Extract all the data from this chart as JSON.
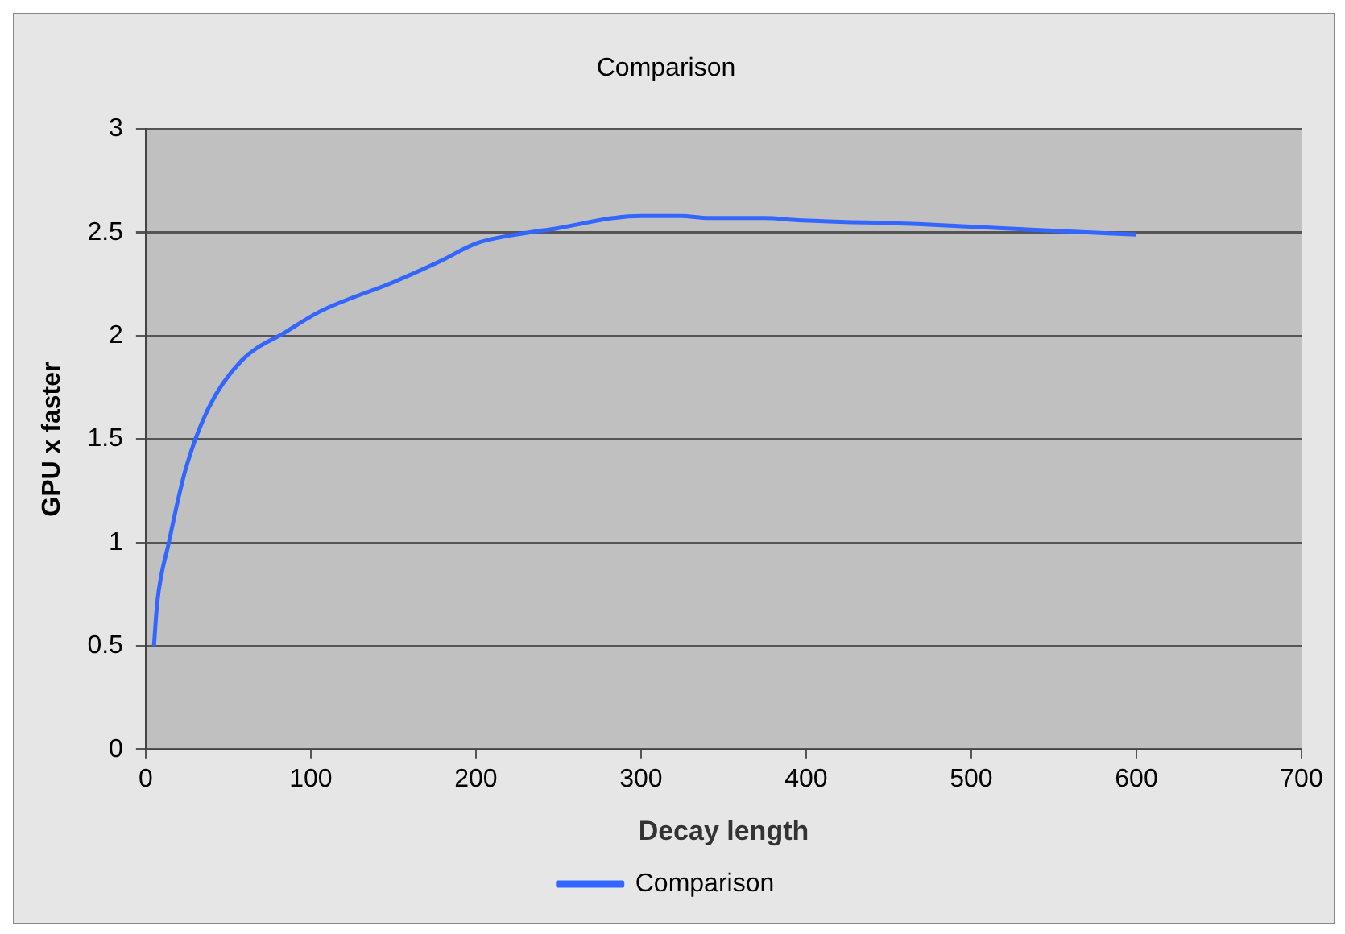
{
  "chart_data": {
    "type": "line",
    "title": "Comparison",
    "xlabel": "Decay length",
    "ylabel": "GPU x faster",
    "xlim": [
      0,
      700
    ],
    "xticks": [
      0,
      100,
      200,
      300,
      400,
      500,
      600,
      700
    ],
    "ylim": [
      0,
      3
    ],
    "yticks": [
      0,
      0.5,
      1,
      1.5,
      2,
      2.5,
      3
    ],
    "grid": "y",
    "legend": "bottom",
    "marker": "none",
    "line_style": "solid",
    "series": [
      {
        "name": "Comparison",
        "color": "#3366ff",
        "x": [
          5,
          7,
          14,
          24,
          38,
          58,
          85,
          106,
          150,
          178,
          201,
          232,
          249,
          283,
          300,
          324,
          341,
          375,
          395,
          470,
          521,
          600
        ],
        "values": [
          0.5,
          0.71,
          1.0,
          1.35,
          1.65,
          1.88,
          2.02,
          2.12,
          2.26,
          2.36,
          2.45,
          2.5,
          2.52,
          2.57,
          2.58,
          2.58,
          2.57,
          2.57,
          2.56,
          2.54,
          2.52,
          2.49
        ]
      }
    ]
  }
}
